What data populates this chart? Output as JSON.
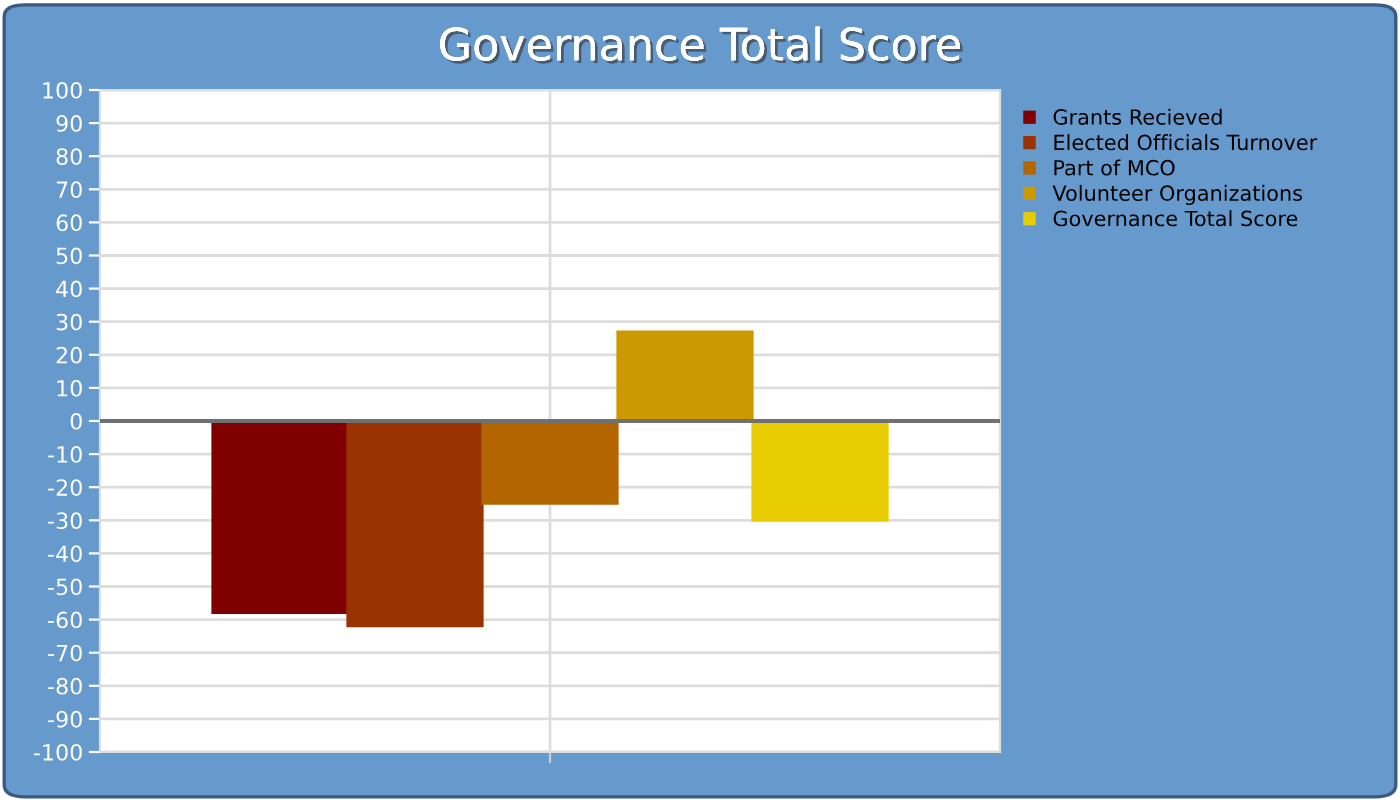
{
  "chart_data": {
    "type": "bar",
    "title": "Governance Total Score",
    "categories": [
      null
    ],
    "series": [
      {
        "name": "Grants Recieved",
        "color": "#800000",
        "values": [
          -58
        ]
      },
      {
        "name": "Elected Officials Turnover",
        "color": "#993300",
        "values": [
          -62
        ]
      },
      {
        "name": "Part of MCO",
        "color": "#b36600",
        "values": [
          -25
        ]
      },
      {
        "name": "Volunteer Organizations",
        "color": "#cc9900",
        "values": [
          27
        ]
      },
      {
        "name": "Governance Total Score",
        "color": "#e6cc00",
        "values": [
          -30
        ]
      }
    ],
    "ylim": [
      -100,
      100
    ],
    "yticks": [
      -100,
      -90,
      -80,
      -70,
      -60,
      -50,
      -40,
      -30,
      -20,
      -10,
      0,
      10,
      20,
      30,
      40,
      50,
      60,
      70,
      80,
      90,
      100
    ],
    "grid": true,
    "legend": "top right"
  }
}
